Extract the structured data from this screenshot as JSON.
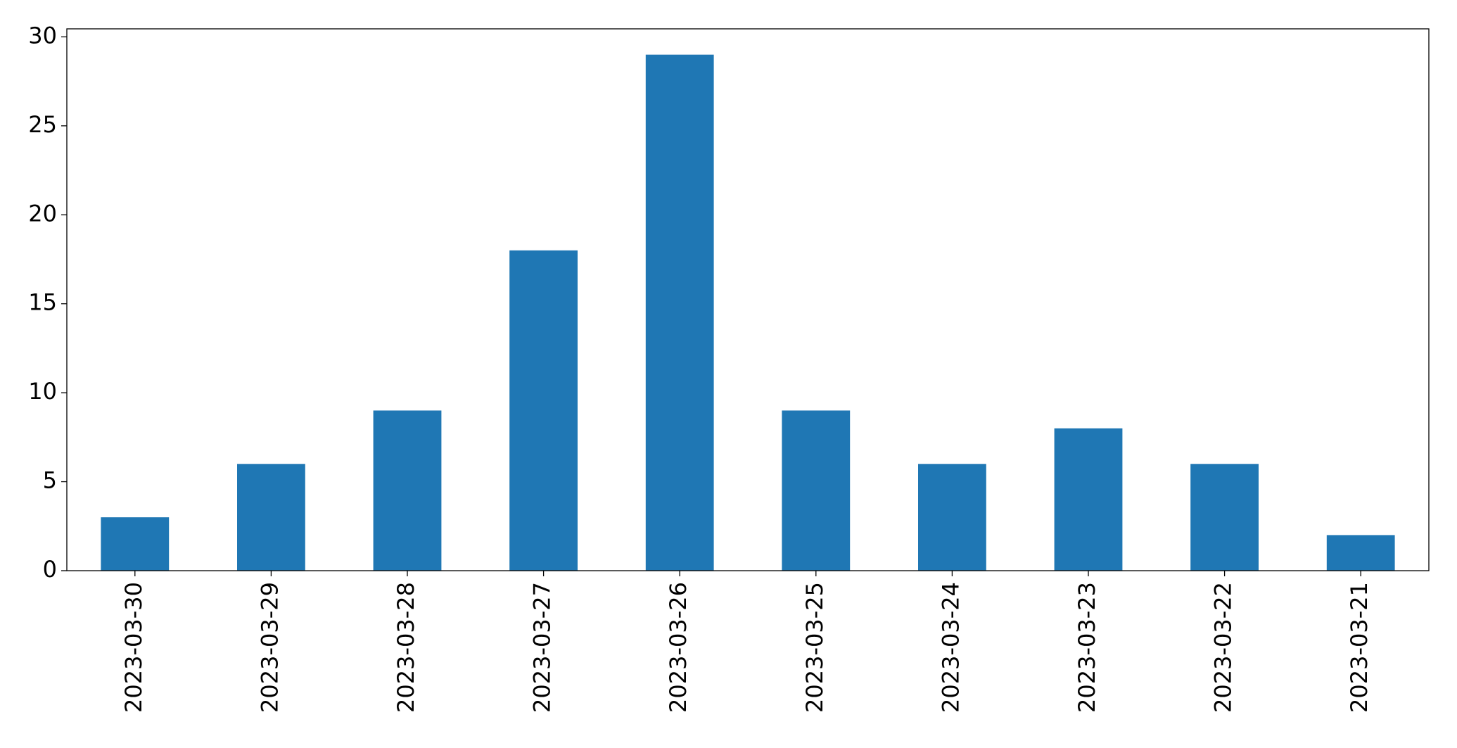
{
  "chart_data": {
    "type": "bar",
    "categories": [
      "2023-03-30",
      "2023-03-29",
      "2023-03-28",
      "2023-03-27",
      "2023-03-26",
      "2023-03-25",
      "2023-03-24",
      "2023-03-23",
      "2023-03-22",
      "2023-03-21"
    ],
    "values": [
      3,
      6,
      9,
      18,
      29,
      9,
      6,
      8,
      6,
      2
    ],
    "color": "#1f77b4",
    "ylim": [
      0,
      30.45
    ],
    "yticks": [
      0,
      5,
      10,
      15,
      20,
      25,
      30
    ],
    "grid": false
  }
}
